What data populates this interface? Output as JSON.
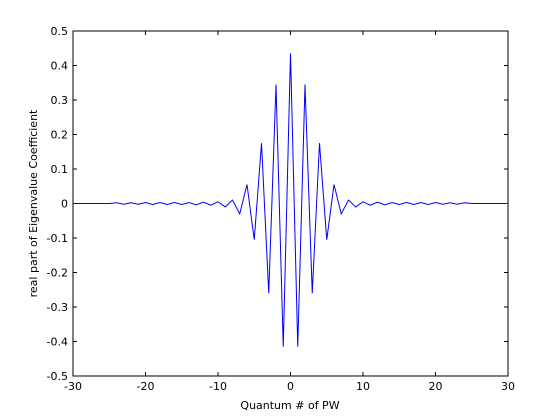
{
  "chart_data": {
    "type": "line",
    "title": "",
    "xlabel": "Quantum # of PW",
    "ylabel": "real part of Eigenvalue Coefficient",
    "xlim": [
      -30,
      30
    ],
    "ylim": [
      -0.5,
      0.5
    ],
    "xticks": [
      -30,
      -20,
      -10,
      0,
      10,
      20,
      30
    ],
    "xtick_labels": [
      "-30",
      "-20",
      "-10",
      "0",
      "10",
      "20",
      "30"
    ],
    "yticks": [
      -0.5,
      -0.4,
      -0.3,
      -0.2,
      -0.1,
      0,
      0.1,
      0.2,
      0.3,
      0.4,
      0.5
    ],
    "ytick_labels": [
      "-0.5",
      "-0.4",
      "-0.3",
      "-0.2",
      "-0.1",
      "0",
      "0.1",
      "0.2",
      "0.3",
      "0.4",
      "0.5"
    ],
    "grid": false,
    "line_color": "#0000ff",
    "series": [
      {
        "x": [
          -30,
          -29,
          -28,
          -27,
          -26,
          -25,
          -24,
          -23,
          -22,
          -21,
          -20,
          -19,
          -18,
          -17,
          -16,
          -15,
          -14,
          -13,
          -12,
          -11,
          -10,
          -9,
          -8,
          -7,
          -6,
          -5,
          -4,
          -3,
          -2,
          -1,
          0,
          1,
          2,
          3,
          4,
          5,
          6,
          7,
          8,
          9,
          10,
          11,
          12,
          13,
          14,
          15,
          16,
          17,
          18,
          19,
          20,
          21,
          22,
          23,
          24,
          25,
          26,
          27,
          28,
          29,
          30
        ],
        "y": [
          0,
          0,
          0,
          0,
          0,
          0,
          0.002,
          -0.002,
          0.002,
          -0.002,
          0.003,
          -0.003,
          0.003,
          -0.003,
          0.003,
          -0.003,
          0.003,
          -0.004,
          0.004,
          -0.005,
          0.005,
          -0.01,
          0.01,
          -0.03,
          0.055,
          -0.105,
          0.175,
          -0.26,
          0.345,
          -0.415,
          0.435,
          -0.415,
          0.345,
          -0.26,
          0.175,
          -0.105,
          0.055,
          -0.03,
          0.01,
          -0.01,
          0.005,
          -0.005,
          0.004,
          -0.004,
          0.003,
          -0.003,
          0.003,
          -0.003,
          0.003,
          -0.003,
          0.003,
          -0.002,
          0.002,
          -0.002,
          0.002,
          0,
          0,
          0,
          0,
          0,
          0
        ]
      }
    ]
  }
}
